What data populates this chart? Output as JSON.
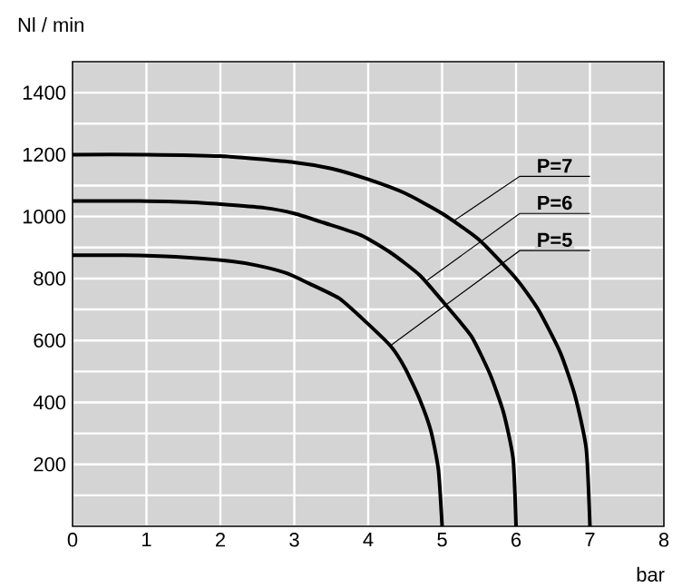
{
  "chart_data": {
    "type": "line",
    "xlabel": "bar",
    "ylabel": "Nl / min",
    "xlim": [
      0,
      8
    ],
    "ylim": [
      0,
      1500
    ],
    "xticks": [
      0,
      1,
      2,
      3,
      4,
      5,
      6,
      7,
      8
    ],
    "yticks": [
      {
        "value": 0,
        "label": null
      },
      {
        "value": 100,
        "label": null
      },
      200,
      {
        "value": 300,
        "label": null
      },
      400,
      {
        "value": 500,
        "label": null
      },
      600,
      {
        "value": 700,
        "label": null
      },
      800,
      {
        "value": 900,
        "label": null
      },
      1000,
      {
        "value": 1100,
        "label": null
      },
      1200,
      {
        "value": 1300,
        "label": null
      },
      1400,
      {
        "value": 1500,
        "label": null
      }
    ],
    "grid": true,
    "marker": "none",
    "line_style": "solid",
    "series": [
      {
        "color": "#000000",
        "x": [
          0,
          1,
          2,
          3,
          3.5,
          4,
          4.5,
          5,
          5.5,
          6,
          6.3,
          6.6,
          6.8,
          6.95,
          7
        ],
        "values": [
          1200,
          1200,
          1195,
          1175,
          1155,
          1120,
          1075,
          1010,
          925,
          800,
          700,
          560,
          420,
          250,
          0
        ]
      },
      {
        "color": "#000000",
        "x": [
          0,
          0.9,
          1.7,
          2.6,
          3,
          3.4,
          3.9,
          4.3,
          4.7,
          5.1,
          5.4,
          5.65,
          5.83,
          5.96,
          6
        ],
        "values": [
          1050,
          1050,
          1045,
          1028,
          1010,
          980,
          940,
          884,
          810,
          700,
          612,
          490,
          368,
          219,
          0
        ]
      },
      {
        "color": "#000000",
        "x": [
          0,
          0.7,
          1.4,
          2.1,
          2.5,
          2.9,
          3.2,
          3.6,
          3.9,
          4.3,
          4.5,
          4.7,
          4.85,
          4.95,
          5
        ],
        "values": [
          875,
          875,
          870,
          857,
          842,
          817,
          784,
          737,
          675,
          583,
          510,
          408,
          306,
          182,
          0
        ]
      }
    ],
    "annotations": [
      {
        "text": "P=7",
        "x": 5.15,
        "y": 985
      },
      {
        "text": "P=6",
        "x": 4.8,
        "y": 795
      },
      {
        "text": "P=5",
        "x": 4.3,
        "y": 583
      }
    ]
  }
}
